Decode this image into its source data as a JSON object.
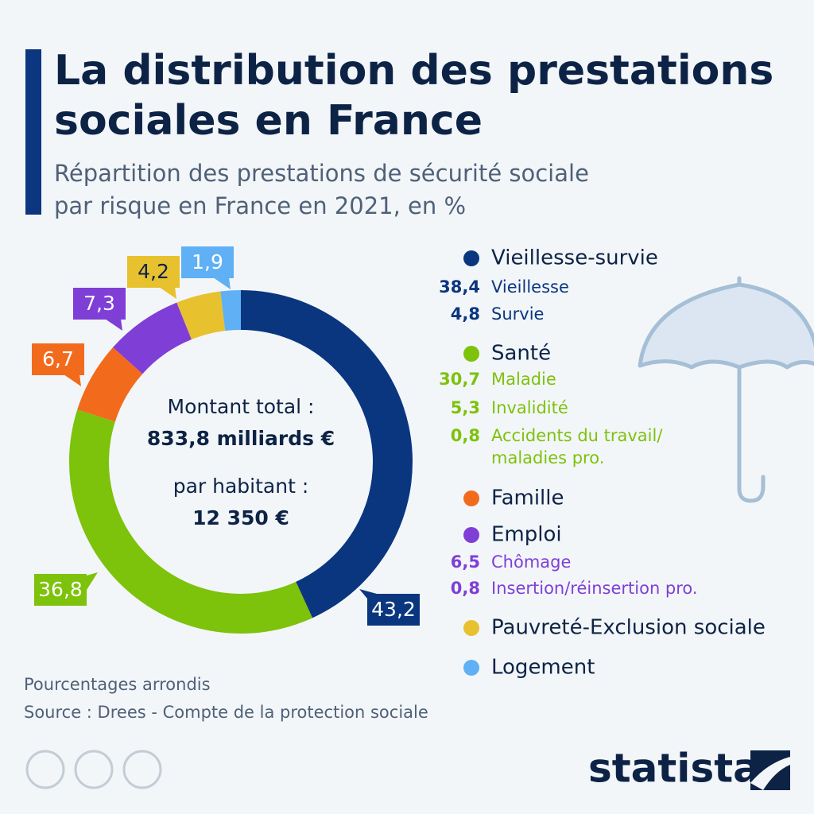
{
  "chart_data": {
    "type": "donut",
    "title": [
      "La distribution des prestations",
      "sociales en France"
    ],
    "subtitle": [
      "Répartition des prestations de sécurité sociale",
      "par risque en France en 2021, en %"
    ],
    "center_text": [
      "Montant total :",
      "833,8 milliards €",
      "par habitant :",
      "12 350 €"
    ],
    "categories": [
      "Vieillesse-survie",
      "Santé",
      "Famille",
      "Emploi",
      "Pauvreté-Exclusion sociale",
      "Logement"
    ],
    "values": [
      43.2,
      36.8,
      6.7,
      7.3,
      4.2,
      1.9
    ],
    "value_labels": [
      "43,2",
      "36,8",
      "6,7",
      "7,3",
      "4,2",
      "1,9"
    ],
    "colors": [
      "#0a3680",
      "#7dc20b",
      "#f26b1d",
      "#7f3fd6",
      "#e8c12e",
      "#5fb0f5"
    ],
    "breakdown": [
      [
        {
          "name": "Vieillesse",
          "value": 38.4,
          "label": "38,4"
        },
        {
          "name": "Survie",
          "value": 4.8,
          "label": "4,8"
        }
      ],
      [
        {
          "name": "Maladie",
          "value": 30.7,
          "label": "30,7"
        },
        {
          "name": "Invalidité",
          "value": 5.3,
          "label": "5,3"
        },
        {
          "name": "Accidents du travail/\nmaladies pro.",
          "value": 0.8,
          "label": "0,8"
        }
      ],
      [],
      [
        {
          "name": "Chômage",
          "value": 6.5,
          "label": "6,5"
        },
        {
          "name": "Insertion/réinsertion pro.",
          "value": 0.8,
          "label": "0,8"
        }
      ],
      [],
      []
    ],
    "notes": [
      "Pourcentages arrondis",
      "Source : Drees - Compte de la protection sociale"
    ],
    "brand": "statista"
  }
}
